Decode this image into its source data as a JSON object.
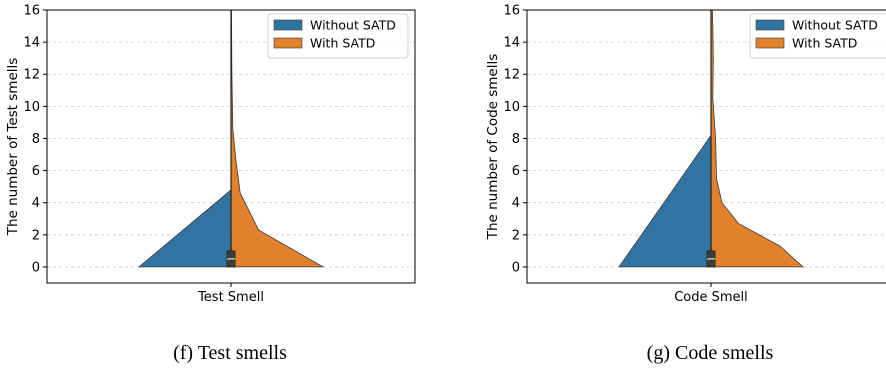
{
  "colors": {
    "without_satd": "#3274a1",
    "with_satd": "#e1812c",
    "edge": "#3a3a3a",
    "grid": "#cccccc"
  },
  "chart_data": [
    {
      "type": "violin",
      "caption": "(f) Test smells",
      "xlabel": "Test Smell",
      "ylabel": "The number of Test smells",
      "ylim": [
        -1,
        16
      ],
      "yticks": [
        0,
        2,
        4,
        6,
        8,
        10,
        12,
        14,
        16
      ],
      "grid": true,
      "legend_placement": "top-right",
      "categories": [
        "Test Smell"
      ],
      "series": [
        {
          "name": "Without SATD",
          "side": "left",
          "profile": [
            [
              0,
              1.0
            ],
            [
              4.8,
              0.0
            ],
            [
              16,
              0.0
            ]
          ]
        },
        {
          "name": "With SATD",
          "side": "right",
          "profile": [
            [
              0,
              1.0
            ],
            [
              2.3,
              0.3
            ],
            [
              4.6,
              0.1
            ],
            [
              6.8,
              0.05
            ],
            [
              8.6,
              0.02
            ],
            [
              12,
              0.01
            ],
            [
              16,
              0.005
            ]
          ]
        }
      ],
      "box": {
        "q1": 0,
        "median": 0.5,
        "q3": 1,
        "whisker_low": 0,
        "whisker_high": 2
      }
    },
    {
      "type": "violin",
      "caption": "(g) Code smells",
      "xlabel": "Code Smell",
      "ylabel": "The number of Code smells",
      "ylim": [
        -1,
        16
      ],
      "yticks": [
        0,
        2,
        4,
        6,
        8,
        10,
        12,
        14,
        16
      ],
      "grid": true,
      "legend_placement": "top-right",
      "categories": [
        "Code Smell"
      ],
      "series": [
        {
          "name": "Without SATD",
          "side": "left",
          "profile": [
            [
              0,
              1.0
            ],
            [
              8.2,
              0.0
            ],
            [
              16,
              0.0
            ]
          ]
        },
        {
          "name": "With SATD",
          "side": "right",
          "profile": [
            [
              0,
              1.0
            ],
            [
              1.3,
              0.75
            ],
            [
              2.7,
              0.3
            ],
            [
              4.0,
              0.12
            ],
            [
              5.5,
              0.06
            ],
            [
              8.0,
              0.05
            ],
            [
              10.5,
              0.02
            ],
            [
              13.0,
              0.025
            ],
            [
              15.0,
              0.02
            ],
            [
              16,
              0.015
            ]
          ]
        }
      ],
      "box": {
        "q1": 0,
        "median": 0.5,
        "q3": 1,
        "whisker_low": 0,
        "whisker_high": 5
      }
    }
  ]
}
